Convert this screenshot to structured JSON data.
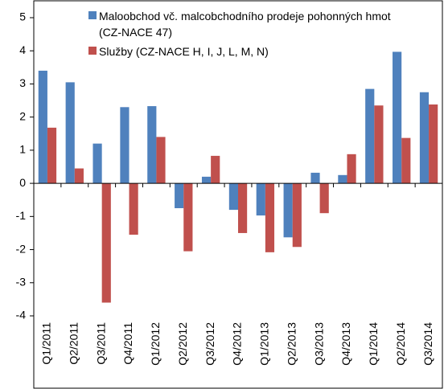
{
  "chart_data": {
    "type": "bar",
    "categories": [
      "Q1/2011",
      "Q2/2011",
      "Q3/2011",
      "Q4/2011",
      "Q1/2012",
      "Q2/2012",
      "Q3/2012",
      "Q4/2012",
      "Q1/2013",
      "Q2/2013",
      "Q3/2013",
      "Q4/2013",
      "Q1/2014",
      "Q2/2014",
      "Q3/2014"
    ],
    "series": [
      {
        "name": "Maloobchod vč. malcobchodního prodeje pohonných hmot (CZ-NACE 47)",
        "color": "#4f81bd",
        "values": [
          3.4,
          3.05,
          1.2,
          2.3,
          2.33,
          -0.75,
          0.2,
          -0.8,
          -0.97,
          -1.63,
          0.32,
          0.25,
          2.85,
          3.97,
          2.75
        ]
      },
      {
        "name": "Služby (CZ-NACE H, I, J, L, M, N)",
        "color": "#c0504d",
        "values": [
          1.68,
          0.45,
          -3.6,
          -1.55,
          1.4,
          -2.05,
          0.83,
          -1.5,
          -2.08,
          -1.92,
          -0.9,
          0.88,
          2.35,
          1.37,
          2.38
        ]
      }
    ],
    "ylim": [
      -4,
      5
    ],
    "yticks": [
      -4,
      -3,
      -2,
      -1,
      0,
      1,
      2,
      3,
      4,
      5
    ]
  }
}
